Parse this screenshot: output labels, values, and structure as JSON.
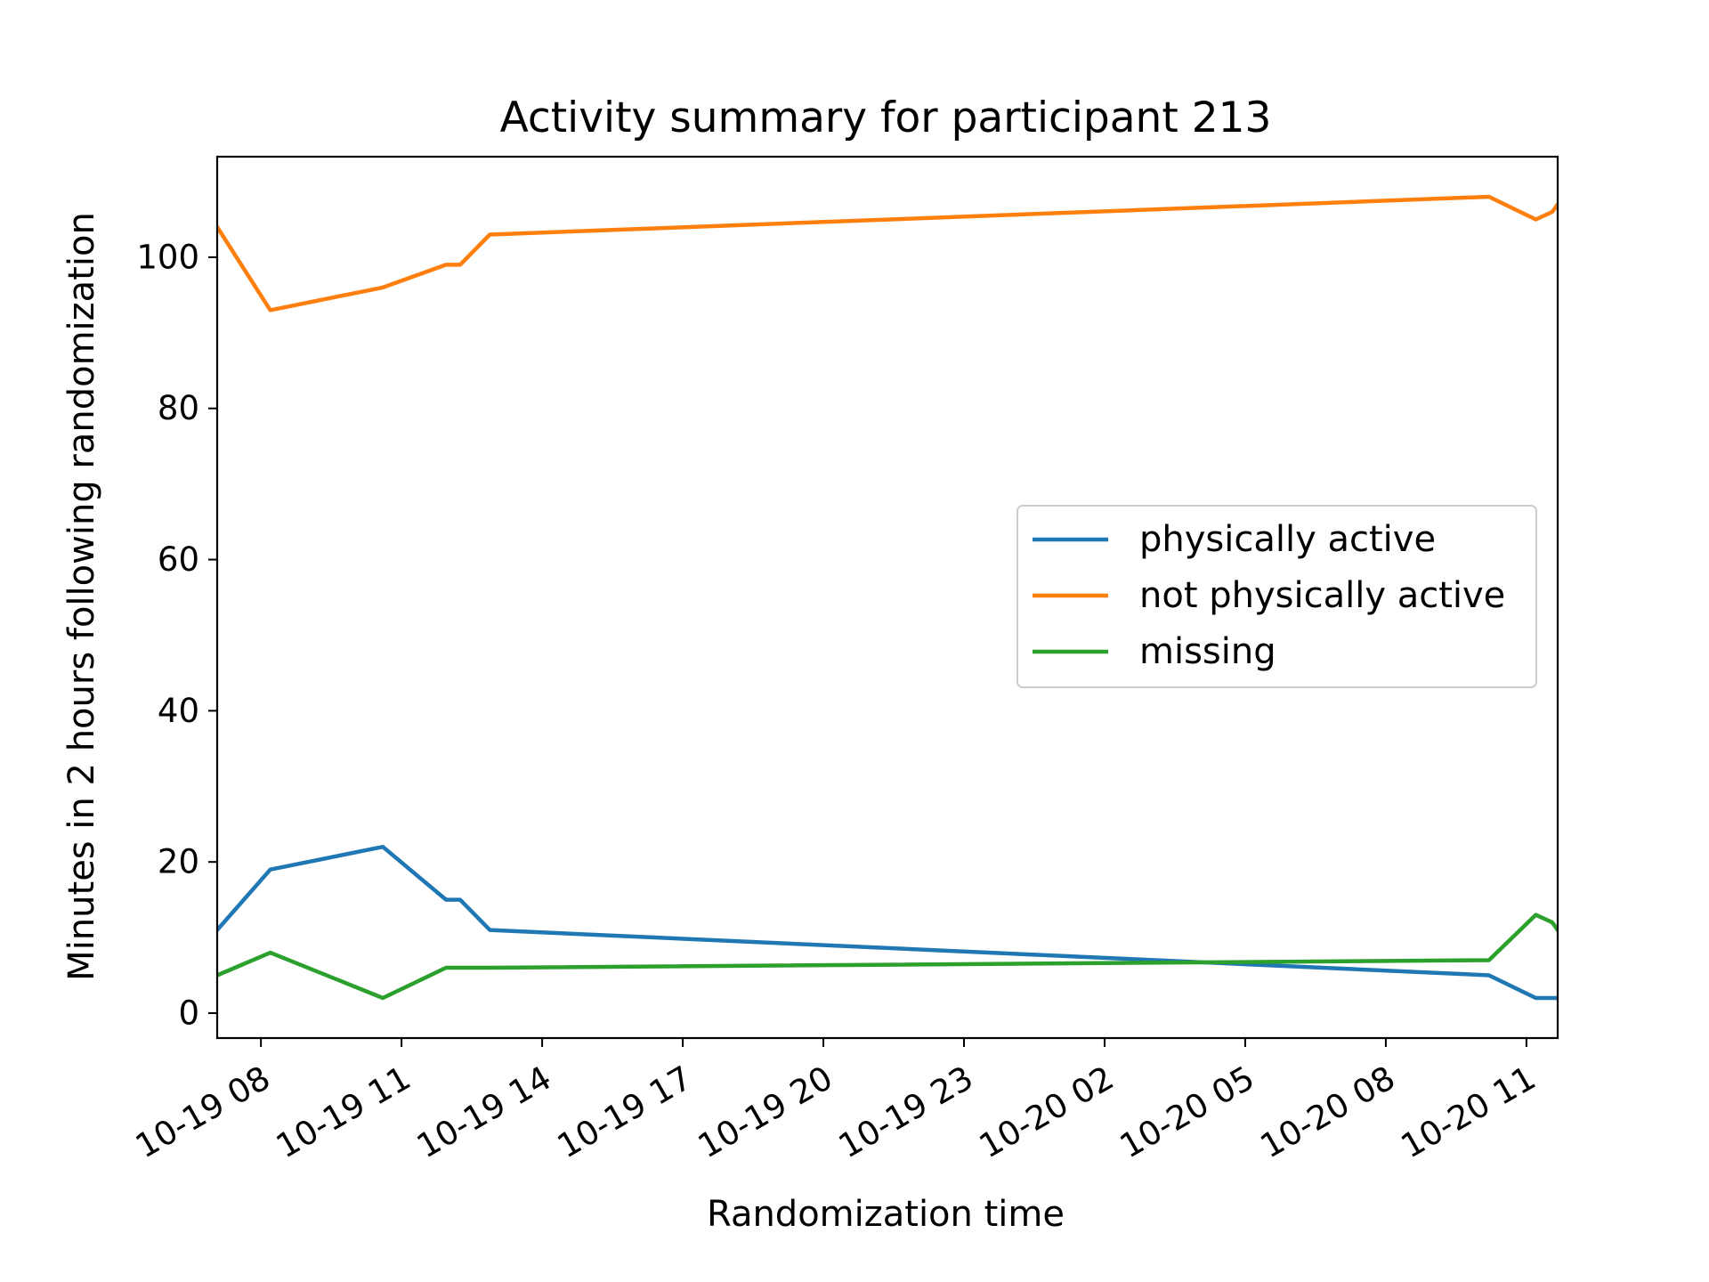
{
  "chart_data": {
    "type": "line",
    "title": "Activity summary for participant 213",
    "xlabel": "Randomization time",
    "ylabel": "Minutes in 2 hours following randomization",
    "x_ticks": [
      "10-19 08",
      "10-19 11",
      "10-19 14",
      "10-19 17",
      "10-19 20",
      "10-19 23",
      "10-20 02",
      "10-20 05",
      "10-20 08",
      "10-20 11"
    ],
    "xlim": [
      "10-19 07:04",
      "10-20 11:40"
    ],
    "ylim": [
      -3.3,
      113.3
    ],
    "y_ticks": [
      0,
      20,
      40,
      60,
      80,
      100
    ],
    "legend_position": "center-right",
    "grid": false,
    "x": [
      "10-19 07:04",
      "10-19 08:12",
      "10-19 10:36",
      "10-19 11:57",
      "10-19 12:15",
      "10-19 12:53",
      "10-20 10:12",
      "10-20 11:12",
      "10-20 11:33",
      "10-20 11:40"
    ],
    "series": [
      {
        "name": "physically active",
        "color": "#1f77b4",
        "values": [
          11,
          19,
          22,
          15,
          15,
          11,
          5,
          2,
          2,
          2
        ]
      },
      {
        "name": "not physically active",
        "color": "#ff7f0e",
        "values": [
          104,
          93,
          96,
          99,
          99,
          103,
          108,
          105,
          106,
          107
        ]
      },
      {
        "name": "missing",
        "color": "#2ca02c",
        "values": [
          5,
          8,
          2,
          6,
          6,
          6,
          7,
          13,
          12,
          11
        ]
      }
    ]
  }
}
